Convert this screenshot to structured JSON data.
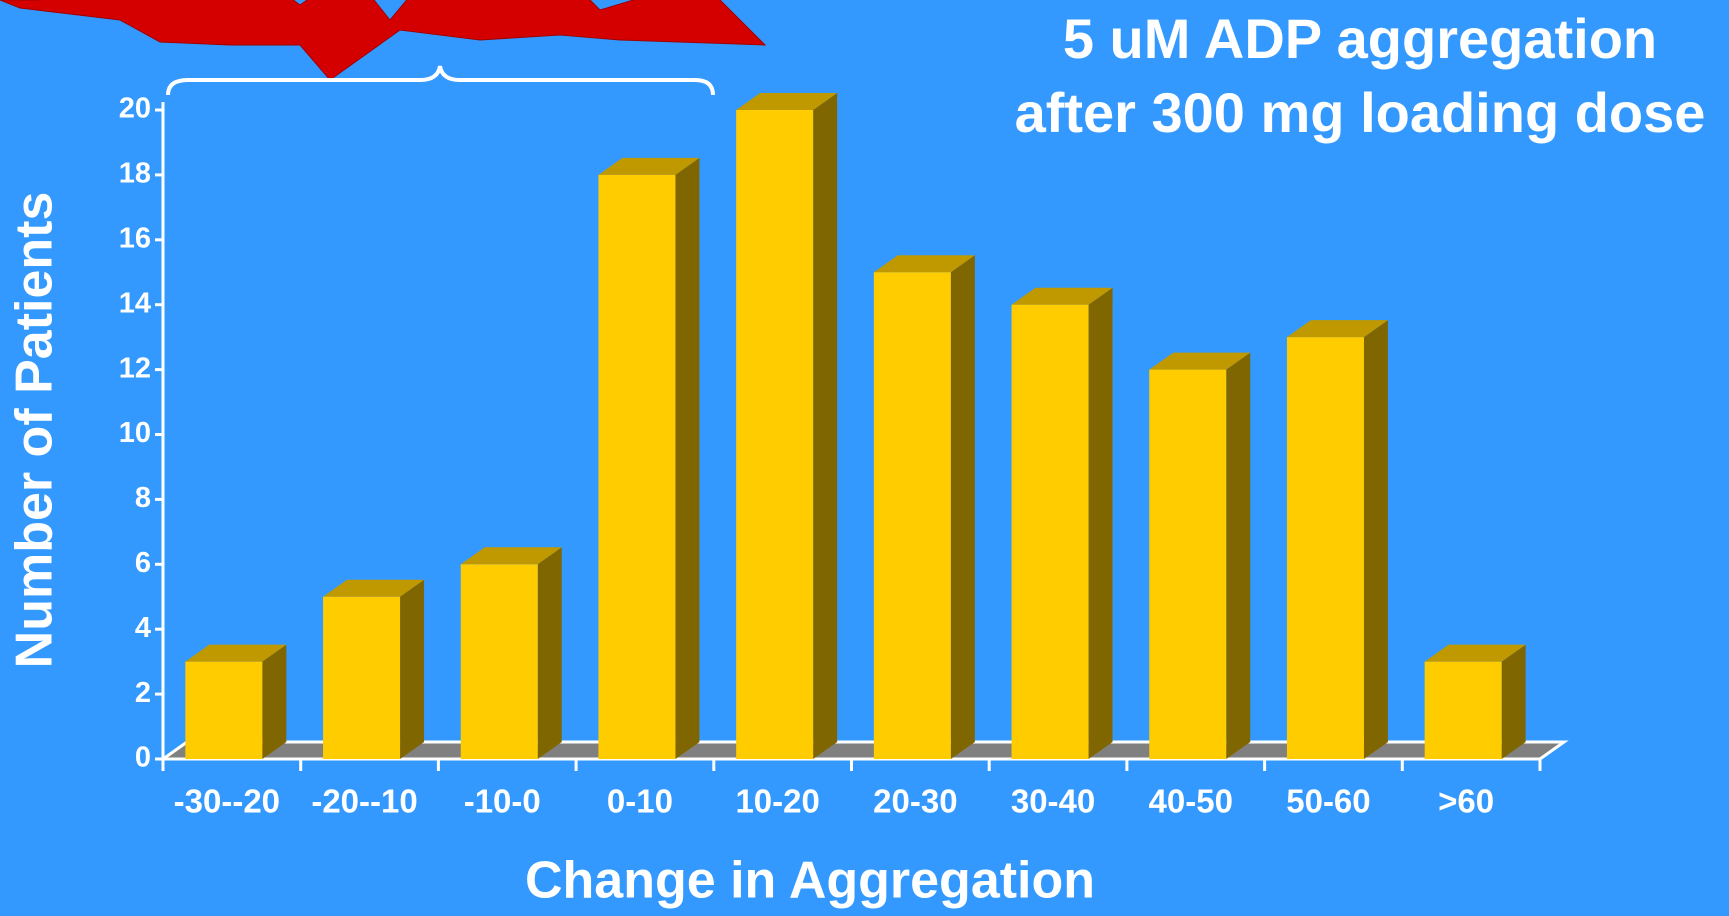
{
  "chart_data": {
    "type": "bar3d",
    "title": "5 uM ADP aggregation after 300 mg loading dose",
    "x_label": "Change in Aggregation",
    "y_label": "Number of Patients",
    "categories": [
      "-30--20",
      "-20--10",
      "-10-0",
      "0-10",
      "10-20",
      "20-30",
      "30-40",
      "40-50",
      "50-60",
      ">60"
    ],
    "values": [
      3,
      5,
      6,
      18,
      20,
      15,
      14,
      12,
      13,
      3
    ],
    "color": "#ffcc00",
    "ylim": [
      0,
      20
    ],
    "yticks": [
      0,
      2,
      4,
      6,
      8,
      10,
      12,
      14,
      16,
      18,
      20
    ]
  }
}
